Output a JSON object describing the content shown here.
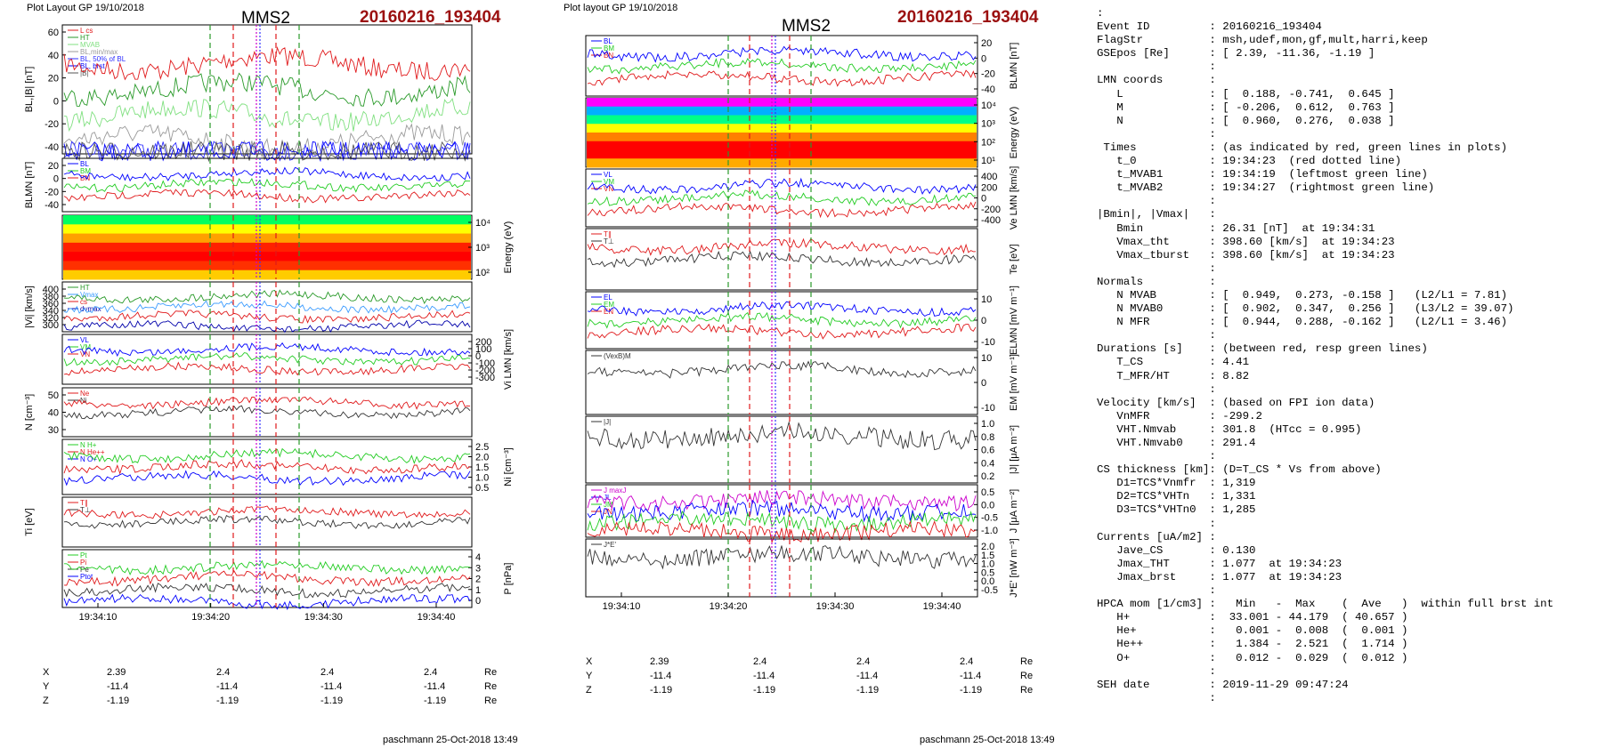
{
  "left": {
    "header": "Plot Layout GP 19/10/2018",
    "spacecraft": "MMS2",
    "event": "20160216_193404",
    "footer": "paschmann 25-Oct-2018 13:49",
    "time_ticks": [
      "19:34:10",
      "19:34:20",
      "19:34:30",
      "19:34:40"
    ],
    "orbit": {
      "rows": [
        {
          "label": "X",
          "values": [
            "2.39",
            "2.4",
            "2.4",
            "2.4"
          ],
          "unit": "Re"
        },
        {
          "label": "Y",
          "values": [
            "-11.4",
            "-11.4",
            "-11.4",
            "-11.4"
          ],
          "unit": "Re"
        },
        {
          "label": "Z",
          "values": [
            "-1.19",
            "-1.19",
            "-1.19",
            "-1.19"
          ],
          "unit": "Re"
        }
      ]
    },
    "panels": [
      {
        "key": "bl",
        "ylabel": "BL,|B| [nT]",
        "ticks": [
          "60",
          "40",
          "20",
          "0",
          "-20",
          "-40"
        ],
        "legend": [
          "L cs",
          "HT",
          "MVAB",
          "BL,min/max",
          "BL, 50% of BL",
          "BL, brst",
          "|B|"
        ],
        "legend_colors": [
          "#e0191b",
          "#2a9a2a",
          "#80e080",
          "#9a9a9a",
          "#3030ff",
          "#0000ff",
          "#555555"
        ]
      },
      {
        "key": "blmn",
        "ylabel": "BLMN [nT]",
        "ticks": [
          "20",
          "0",
          "-20",
          "-40"
        ],
        "legend": [
          "BL",
          "BM",
          "BN"
        ],
        "legend_colors": [
          "#0000ff",
          "#22cc22",
          "#e0191b"
        ]
      },
      {
        "key": "spec",
        "ylabel": "Energy (eV)",
        "ticks": [
          "10⁴",
          "10³",
          "10²"
        ]
      },
      {
        "key": "vi",
        "ylabel": "|Vi| [km/s]",
        "ticks": [
          "400",
          "380",
          "360",
          "340",
          "320",
          "300"
        ],
        "legend": [
          "HT",
          "Vmax",
          "cs",
          "dvmax"
        ],
        "legend_colors": [
          "#2a9a2a",
          "#3c9cff",
          "#e0191b",
          "#0000aa"
        ]
      },
      {
        "key": "vlmn",
        "ylabel": "Vi LMN [km/s]",
        "ticks": [
          "200",
          "100",
          "0",
          "-100",
          "-200",
          "-300"
        ],
        "legend": [
          "VL",
          "VM",
          "VN"
        ],
        "legend_colors": [
          "#0000ff",
          "#22cc22",
          "#e0191b"
        ]
      },
      {
        "key": "n",
        "ylabel": "N [cm⁻³]",
        "ticks": [
          "50",
          "40",
          "30"
        ],
        "legend": [
          "Ne",
          "Ni"
        ],
        "legend_colors": [
          "#e0191b",
          "#333333"
        ]
      },
      {
        "key": "ni",
        "ylabel": "Ni [cm⁻³]",
        "ticks": [
          "2.5",
          "2.0",
          "1.5",
          "1.0",
          "0.5"
        ],
        "legend": [
          "N  H+",
          "N  He++",
          "N  O+"
        ],
        "legend_colors": [
          "#22cc22",
          "#e0191b",
          "#0000ff"
        ]
      },
      {
        "key": "ti",
        "ylabel": "Ti [eV]",
        "ticks": [],
        "legend": [
          "T∥",
          "T⊥"
        ],
        "legend_colors": [
          "#e0191b",
          "#333333"
        ]
      },
      {
        "key": "p",
        "ylabel": "P [nPa]",
        "ticks": [
          "4",
          "3",
          "2",
          "1",
          "0"
        ],
        "legend": [
          "Pt",
          "Pi",
          "Pe",
          "Ptot"
        ],
        "legend_colors": [
          "#22cc22",
          "#e0191b",
          "#333333",
          "#0000ff"
        ]
      }
    ]
  },
  "middle": {
    "header": "Plot layout GP 19/10/2018",
    "spacecraft": "MMS2",
    "event": "20160216_193404",
    "footer": "paschmann 25-Oct-2018 13:49",
    "time_ticks": [
      "19:34:10",
      "19:34:20",
      "19:34:30",
      "19:34:40"
    ],
    "orbit": {
      "rows": [
        {
          "label": "X",
          "values": [
            "2.39",
            "2.4",
            "2.4",
            "2.4"
          ],
          "unit": "Re"
        },
        {
          "label": "Y",
          "values": [
            "-11.4",
            "-11.4",
            "-11.4",
            "-11.4"
          ],
          "unit": "Re"
        },
        {
          "label": "Z",
          "values": [
            "-1.19",
            "-1.19",
            "-1.19",
            "-1.19"
          ],
          "unit": "Re"
        }
      ]
    },
    "panels": [
      {
        "key": "blmn",
        "ylabel": "BLMN [nT]",
        "ticks": [
          "20",
          "0",
          "-20",
          "-40"
        ],
        "legend": [
          "BL",
          "BM",
          "BN"
        ],
        "legend_colors": [
          "#0000ff",
          "#22cc22",
          "#e0191b"
        ]
      },
      {
        "key": "spec",
        "ylabel": "Energy (eV)",
        "ticks": [
          "10⁴",
          "10³",
          "10²",
          "10¹"
        ]
      },
      {
        "key": "ve",
        "ylabel": "Ve LMN [km/s]",
        "ticks": [
          "400",
          "200",
          "0",
          "-200",
          "-400"
        ],
        "legend": [
          "VL",
          "VM",
          "VN"
        ],
        "legend_colors": [
          "#0000ff",
          "#22cc22",
          "#e0191b"
        ]
      },
      {
        "key": "te",
        "ylabel": "Te [eV]",
        "ticks": [],
        "legend": [
          "T∥",
          "T⊥"
        ],
        "legend_colors": [
          "#e0191b",
          "#333333"
        ]
      },
      {
        "key": "e",
        "ylabel": "ELMN [mV m⁻¹]",
        "ticks": [
          "10",
          "0",
          "-10"
        ],
        "legend": [
          "EL",
          "EM",
          "EN"
        ],
        "legend_colors": [
          "#0000ff",
          "#22cc22",
          "#e0191b"
        ]
      },
      {
        "key": "em",
        "ylabel": "EM [mV m⁻¹]",
        "ticks": [
          "10",
          "0",
          "-10"
        ],
        "legend": [
          "(VexB)M"
        ],
        "legend_colors": [
          "#333333"
        ]
      },
      {
        "key": "j",
        "ylabel": "|J| [μA m⁻²]",
        "ticks": [
          "1.0",
          "0.8",
          "0.6",
          "0.4",
          "0.2"
        ],
        "legend": [
          "|J|"
        ],
        "legend_colors": [
          "#333333"
        ]
      },
      {
        "key": "jlmn",
        "ylabel": "J [μA m⁻²]",
        "ticks": [
          "0.5",
          "0.0",
          "-0.5",
          "-1.0"
        ],
        "legend": [
          "J maxJ",
          "JL",
          "JM",
          "JN"
        ],
        "legend_colors": [
          "#cc00cc",
          "#0000ff",
          "#22cc22",
          "#e0191b"
        ]
      },
      {
        "key": "je",
        "ylabel": "J*E' [nW m⁻³]",
        "ticks": [
          "2.0",
          "1.5",
          "1.0",
          "0.5",
          "0.0",
          "-0.5"
        ],
        "legend": [
          "J*E'"
        ],
        "legend_colors": [
          "#333333"
        ]
      }
    ]
  },
  "info": {
    "lines": [
      ":",
      "Event ID         : 20160216_193404",
      "FlagStr          : msh,udef,mon,gf,mult,harri,keep",
      "GSEpos [Re]      : [ 2.39, -11.36, -1.19 ]",
      "                 :",
      "LMN coords       :",
      "   L             : [  0.188, -0.741,  0.645 ]",
      "   M             : [ -0.206,  0.612,  0.763 ]",
      "   N             : [  0.960,  0.276,  0.038 ]",
      "                 :",
      " Times           : (as indicated by red, green lines in plots)",
      "   t_0           : 19:34:23  (red dotted line)",
      "   t_MVAB1       : 19:34:19  (leftmost green line)",
      "   t_MVAB2       : 19:34:27  (rightmost green line)",
      "                 :",
      "|Bmin|, |Vmax|   :",
      "   Bmin          : 26.31 [nT]  at 19:34:31",
      "   Vmax_tht      : 398.60 [km/s]  at 19:34:23",
      "   Vmax_tburst   : 398.60 [km/s]  at 19:34:23",
      "                 :",
      "Normals          :",
      "   N MVAB        : [  0.949,  0.273, -0.158 ]   (L2/L1 = 7.81)",
      "   N MVAB0       : [  0.902,  0.347,  0.256 ]   (L3/L2 = 39.07)",
      "   N MFR         : [  0.944,  0.288, -0.162 ]   (L2/L1 = 3.46)",
      "                 :",
      "Durations [s]    : (between red, resp green lines)",
      "   T_CS          : 4.41",
      "   T_MFR/HT      : 8.82",
      "                 :",
      "Velocity [km/s]  : (based on FPI ion data)",
      "   VnMFR         : -299.2",
      "   VHT.Nmvab     : 301.8  (HTcc = 0.995)",
      "   VHT.Nmvab0    : 291.4",
      "                 :",
      "CS thickness [km]: (D=T_CS * Vs from above)",
      "   D1=TCS*Vnmfr  : 1,319",
      "   D2=TCS*VHTn   : 1,331",
      "   D3=TCS*VHTn0  : 1,285",
      "                 :",
      "Currents [uA/m2] :",
      "   Jave_CS       : 0.130",
      "   Jmax_THT      : 1.077  at 19:34:23",
      "   Jmax_brst     : 1.077  at 19:34:23",
      "                 :",
      "HPCA mom [1/cm3] :   Min   -  Max    (  Ave   )  within full brst int",
      "   H+            :  33.001 - 44.179  ( 40.657 )",
      "   He+           :   0.001 -  0.008  (  0.001 )",
      "   He++          :   1.384 -  2.521  (  1.714 )",
      "   O+            :   0.012 -  0.029  (  0.012 )",
      "                 :",
      "SEH date         : 2019-11-29 09:47:24",
      "                 :"
    ]
  },
  "colors": {
    "event_red": "#9b1010",
    "green_marker": "#2a9a2a",
    "red_marker": "#e0191b",
    "magenta_marker": "#cc00cc",
    "blue_marker": "#3333ff"
  },
  "chart_data": [
    {
      "type": "line",
      "title": "MMS2",
      "xlabel": "",
      "x_ticks": [
        "19:34:10",
        "19:34:20",
        "19:34:30",
        "19:34:40"
      ],
      "series": [
        {
          "name": "BL",
          "panel": "BL,|B| [nT]",
          "values": [
            -40,
            -38,
            -35,
            -42,
            -38,
            -35,
            -20,
            0,
            4,
            0,
            -2,
            -5,
            -8,
            -12,
            -14,
            -15
          ]
        },
        {
          "name": "|B|",
          "panel": "BL,|B| [nT]",
          "values": [
            58,
            55,
            52,
            48,
            50,
            48,
            45,
            40,
            35,
            30,
            32,
            38,
            40,
            38,
            36,
            35
          ]
        },
        {
          "name": "|Vi|",
          "panel": "|Vi| [km/s]",
          "values": [
            340,
            345,
            330,
            335,
            325,
            310,
            320,
            398.6,
            360,
            355,
            345,
            340,
            350,
            345,
            340,
            345
          ]
        },
        {
          "name": "Ne",
          "panel": "N [cm⁻³]",
          "values": [
            35,
            33,
            30,
            28,
            30,
            32,
            35,
            32,
            38,
            42,
            43,
            44,
            45,
            44,
            46,
            45
          ]
        }
      ]
    }
  ]
}
